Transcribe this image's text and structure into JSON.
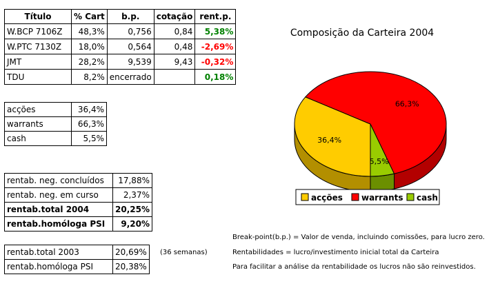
{
  "main_table": {
    "headers": [
      "Título",
      "% Cart",
      "b.p.",
      "cotação",
      "rent.p."
    ],
    "rows": [
      {
        "titulo": "W.BCP 7106Z",
        "cart": "48,3%",
        "bp": "0,756",
        "cotacao": "0,84",
        "rent": "5,38%",
        "sign": "pos"
      },
      {
        "titulo": "W.PTC 7130Z",
        "cart": "18,0%",
        "bp": "0,564",
        "cotacao": "0,48",
        "rent": "-2,69%",
        "sign": "neg"
      },
      {
        "titulo": "JMT",
        "cart": "28,2%",
        "bp": "9,539",
        "cotacao": "9,43",
        "rent": "-0,32%",
        "sign": "neg"
      },
      {
        "titulo": "TDU",
        "cart": "8,2%",
        "bp": "encerrado",
        "cotacao": "",
        "rent": "0,18%",
        "sign": "pos"
      }
    ]
  },
  "allocation_table": {
    "rows": [
      {
        "label": "acções",
        "value": "36,4%"
      },
      {
        "label": "warrants",
        "value": "66,3%"
      },
      {
        "label": "cash",
        "value": "5,5%"
      }
    ]
  },
  "rentab_table": {
    "rows": [
      {
        "label": "rentab. neg. concluídos",
        "value": "17,88%",
        "bold": false
      },
      {
        "label": "rentab. neg. em curso",
        "value": "2,37%",
        "bold": false
      },
      {
        "label": "rentab.total 2004",
        "value": "20,25%",
        "bold": true
      },
      {
        "label": "rentab.homóloga PSI",
        "value": "9,20%",
        "bold": true
      }
    ]
  },
  "rentab2_table": {
    "rows": [
      {
        "label": "rentab.total 2003",
        "value": "20,69%"
      },
      {
        "label": "rentab.homóloga PSI",
        "value": "20,38%"
      }
    ],
    "side_note": "(36 semanas)"
  },
  "notes": [
    "Break-point(b.p.) = Valor de venda, incluindo comissões, para lucro zero.",
    "Rentabilidades = lucro/investimento inicial total da Carteira",
    "Para facilitar a análise da rentabilidade os lucros não são reinvestidos."
  ],
  "chart_data": {
    "type": "pie",
    "title": "Composição da Carteira 2004",
    "categories": [
      "acções",
      "warrants",
      "cash"
    ],
    "values": [
      36.4,
      66.3,
      5.5
    ],
    "labels": [
      "36,4%",
      "66,3%",
      "5,5%"
    ],
    "colors": [
      "#ffcc00",
      "#ff0000",
      "#99cc00"
    ],
    "side_colors": [
      "#b38f00",
      "#b30000",
      "#6b8f00"
    ],
    "legend_placement": "bottom",
    "style": "3d"
  }
}
